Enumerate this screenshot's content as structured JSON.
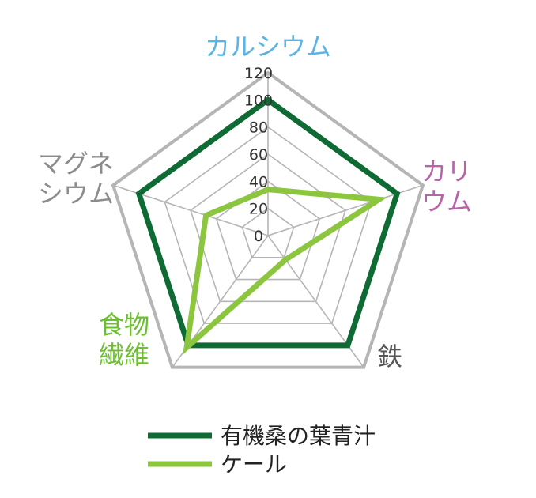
{
  "chart_data": {
    "type": "radar",
    "axes": [
      {
        "label_lines": [
          "カルシウム"
        ],
        "color": "#5bb4e6"
      },
      {
        "label_lines": [
          "カリ",
          "ウム"
        ],
        "color": "#b565a7"
      },
      {
        "label_lines": [
          "鉄"
        ],
        "color": "#555555"
      },
      {
        "label_lines": [
          "食物",
          "繊維"
        ],
        "color": "#6cbf2f"
      },
      {
        "label_lines": [
          "マグネ",
          "シウム"
        ],
        "color": "#8c8c8c"
      }
    ],
    "ticks": [
      "0",
      "20",
      "40",
      "60",
      "80",
      "100",
      "120"
    ],
    "rmax": 120,
    "grid_color": "#b5b5b5",
    "series": [
      {
        "name": "有機桑の葉青汁",
        "color": "#0f6b34",
        "values": [
          100,
          100,
          100,
          100,
          100
        ]
      },
      {
        "name": "ケール",
        "color": "#8cc63f",
        "values": [
          34,
          86,
          22,
          102,
          48
        ]
      }
    ]
  }
}
